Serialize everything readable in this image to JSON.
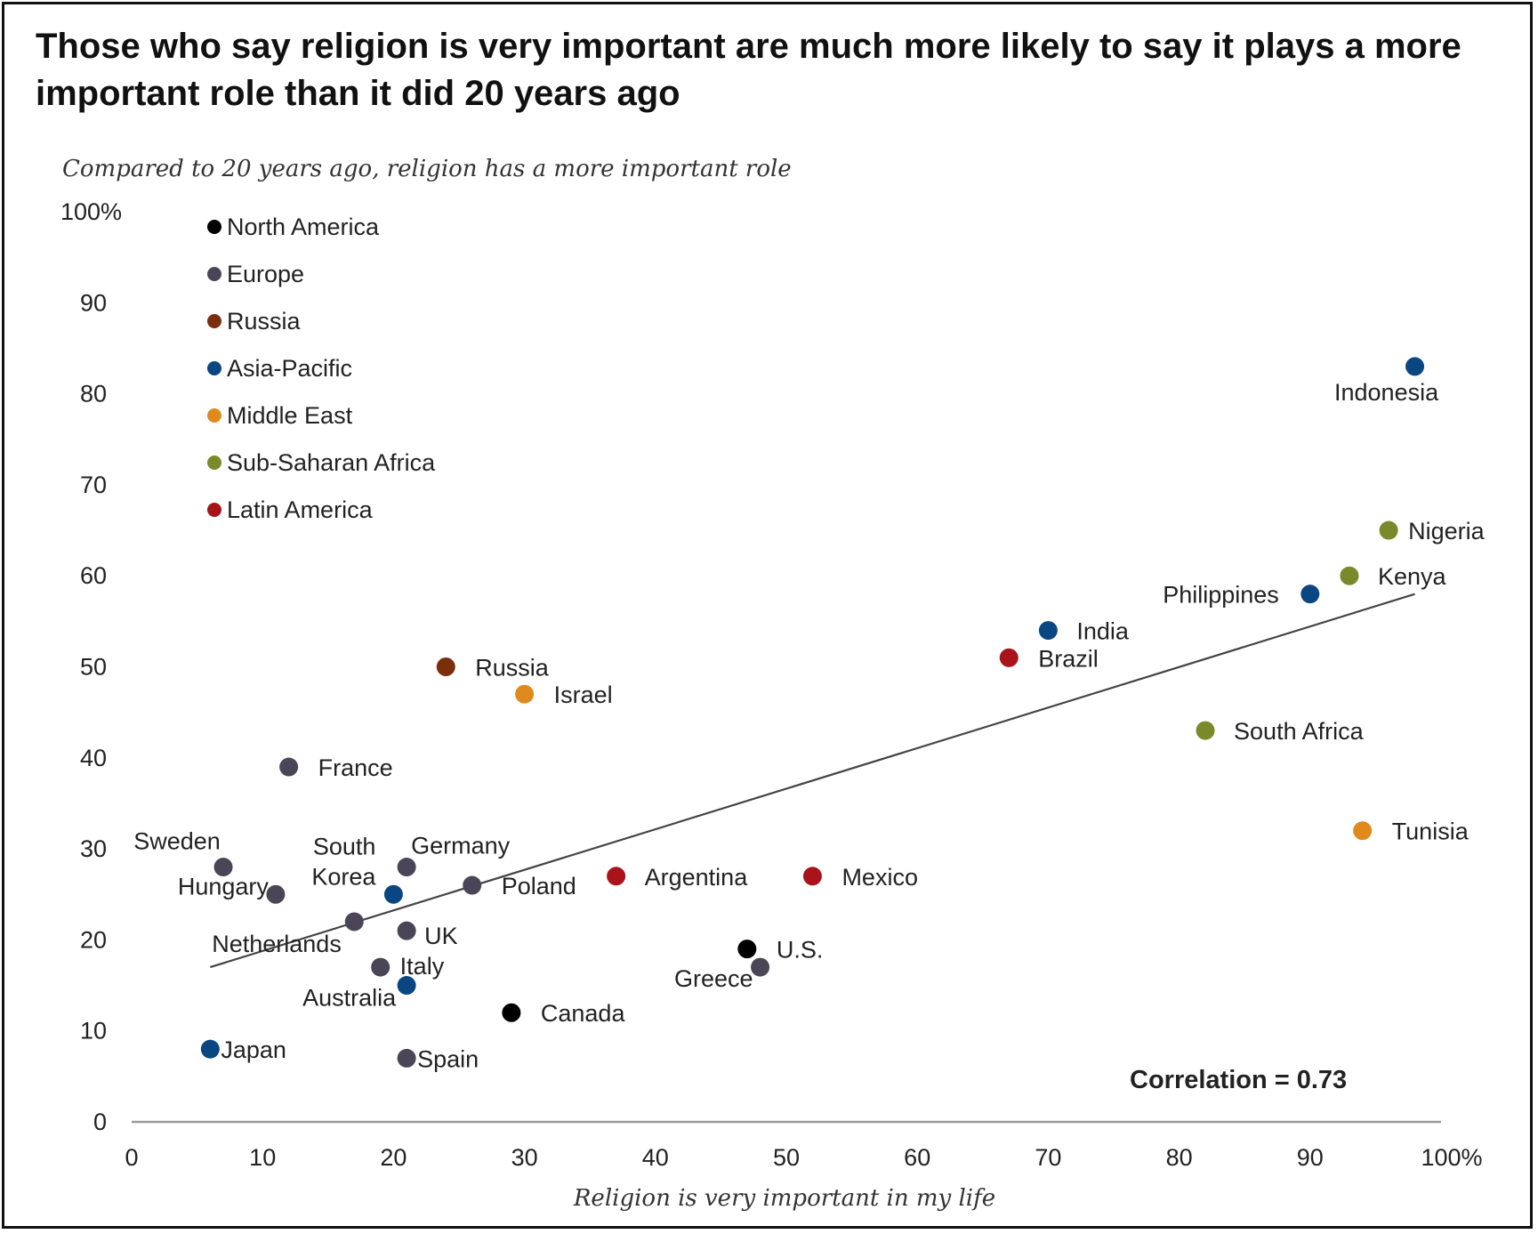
{
  "title": "Those who say religion is very important are much more likely to say it plays a more important role than it did 20 years ago",
  "chart_data": {
    "type": "scatter",
    "title": "Those who say religion is very important are much more likely to say it plays a more important role than it did 20 years ago",
    "ylabel": "Compared to 20 years ago, religion has a more important role",
    "xlabel": "Religion is very important in my life",
    "xlim": [
      0,
      100
    ],
    "ylim": [
      0,
      100
    ],
    "xticks": [
      "0",
      "10",
      "20",
      "30",
      "40",
      "50",
      "60",
      "70",
      "80",
      "90",
      "100%"
    ],
    "yticks": [
      "0",
      "10",
      "20",
      "30",
      "40",
      "50",
      "60",
      "70",
      "80",
      "90",
      "100%"
    ],
    "grid": false,
    "legend_position": "top-left",
    "legend": [
      {
        "region": "North America",
        "color": "#000000"
      },
      {
        "region": "Europe",
        "color": "#4b4657"
      },
      {
        "region": "Russia",
        "color": "#7a2e0c"
      },
      {
        "region": "Asia-Pacific",
        "color": "#0a4782"
      },
      {
        "region": "Middle East",
        "color": "#e08a1e"
      },
      {
        "region": "Sub-Saharan Africa",
        "color": "#7a8a2a"
      },
      {
        "region": "Latin America",
        "color": "#a8141a"
      }
    ],
    "points": [
      {
        "label": "Indonesia",
        "x": 98,
        "y": 83,
        "region": "Asia-Pacific"
      },
      {
        "label": "Nigeria",
        "x": 96,
        "y": 65,
        "region": "Sub-Saharan Africa"
      },
      {
        "label": "Kenya",
        "x": 93,
        "y": 60,
        "region": "Sub-Saharan Africa"
      },
      {
        "label": "Philippines",
        "x": 90,
        "y": 58,
        "region": "Asia-Pacific"
      },
      {
        "label": "India",
        "x": 70,
        "y": 54,
        "region": "Asia-Pacific"
      },
      {
        "label": "Brazil",
        "x": 67,
        "y": 51,
        "region": "Latin America"
      },
      {
        "label": "South Africa",
        "x": 82,
        "y": 43,
        "region": "Sub-Saharan Africa"
      },
      {
        "label": "Tunisia",
        "x": 94,
        "y": 32,
        "region": "Middle East"
      },
      {
        "label": "Russia",
        "x": 24,
        "y": 50,
        "region": "Russia"
      },
      {
        "label": "Israel",
        "x": 30,
        "y": 47,
        "region": "Middle East"
      },
      {
        "label": "France",
        "x": 12,
        "y": 39,
        "region": "Europe"
      },
      {
        "label": "Sweden",
        "x": 7,
        "y": 28,
        "region": "Europe"
      },
      {
        "label": "Hungary",
        "x": 11,
        "y": 25,
        "region": "Europe"
      },
      {
        "label": "South Korea",
        "x": 20,
        "y": 25,
        "region": "Asia-Pacific"
      },
      {
        "label": "Germany",
        "x": 21,
        "y": 28,
        "region": "Europe"
      },
      {
        "label": "Poland",
        "x": 26,
        "y": 26,
        "region": "Europe"
      },
      {
        "label": "Argentina",
        "x": 37,
        "y": 27,
        "region": "Latin America"
      },
      {
        "label": "Mexico",
        "x": 52,
        "y": 27,
        "region": "Latin America"
      },
      {
        "label": "Netherlands",
        "x": 17,
        "y": 22,
        "region": "Europe"
      },
      {
        "label": "UK",
        "x": 21,
        "y": 21,
        "region": "Europe"
      },
      {
        "label": "Italy",
        "x": 19,
        "y": 17,
        "region": "Europe"
      },
      {
        "label": "Australia",
        "x": 21,
        "y": 15,
        "region": "Asia-Pacific"
      },
      {
        "label": "U.S.",
        "x": 47,
        "y": 19,
        "region": "North America"
      },
      {
        "label": "Greece",
        "x": 48,
        "y": 17,
        "region": "Europe"
      },
      {
        "label": "Canada",
        "x": 29,
        "y": 12,
        "region": "North America"
      },
      {
        "label": "Japan",
        "x": 6,
        "y": 8,
        "region": "Asia-Pacific"
      },
      {
        "label": "Spain",
        "x": 21,
        "y": 7,
        "region": "Europe"
      }
    ],
    "trendline": {
      "x": [
        6,
        98
      ],
      "y": [
        17,
        58
      ]
    },
    "annotation": "Correlation = 0.73"
  }
}
